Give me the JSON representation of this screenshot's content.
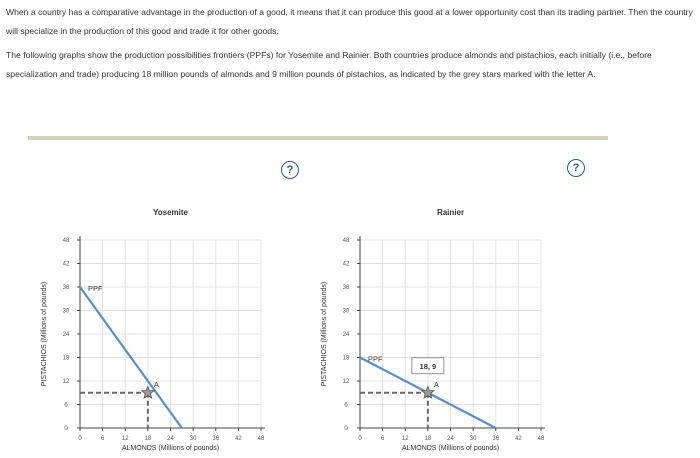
{
  "paragraphs": {
    "p1": "When a country has a comparative advantage in the production of a good, it means that it can produce this good at a lower opportunity cost than its trading partner. Then the country will specialize in the production of this good and trade it for other goods.",
    "p2": "The following graphs show the production possibilities frontiers (PPFs) for Yosemite and Rainier. Both countries produce almonds and pistachios, each initially (i.e., before specialization and trade) producing 18 million pounds of almonds and 9 million pounds of pistachios, as indicated by the grey stars marked with the letter A."
  },
  "help_icon": "?",
  "colors": {
    "ppf": "#5b8ec9",
    "guide": "#6a6a6a",
    "star": "#9a9a9a",
    "grid": "#e3e3e3",
    "rule": "#d9d2b4"
  },
  "chart_data": [
    {
      "type": "line",
      "title": "Yosemite",
      "xlabel": "ALMONDS (Millions of pounds)",
      "ylabel": "PISTACHIOS (Millions of pounds)",
      "xlim": [
        0,
        48
      ],
      "ylim": [
        0,
        48
      ],
      "xticks": [
        0,
        6,
        12,
        18,
        24,
        30,
        36,
        42,
        48
      ],
      "yticks": [
        0,
        6,
        12,
        18,
        24,
        30,
        36,
        42,
        48
      ],
      "grid": true,
      "series": [
        {
          "name": "PPF",
          "x": [
            0,
            27
          ],
          "y": [
            36,
            0
          ]
        }
      ],
      "point": {
        "label": "A",
        "x": 18,
        "y": 9,
        "marker": "star"
      },
      "point_tooltip": ""
    },
    {
      "type": "line",
      "title": "Rainier",
      "xlabel": "ALMONDS (Millions of pounds)",
      "ylabel": "PISTACHIOS (Millions of pounds)",
      "xlim": [
        0,
        48
      ],
      "ylim": [
        0,
        48
      ],
      "xticks": [
        0,
        6,
        12,
        18,
        24,
        30,
        36,
        42,
        48
      ],
      "yticks": [
        0,
        6,
        12,
        18,
        24,
        30,
        36,
        42,
        48
      ],
      "grid": true,
      "series": [
        {
          "name": "PPF",
          "x": [
            0,
            36
          ],
          "y": [
            18,
            0
          ]
        }
      ],
      "point": {
        "label": "A",
        "x": 18,
        "y": 9,
        "marker": "star"
      },
      "point_tooltip": "18, 9"
    }
  ]
}
